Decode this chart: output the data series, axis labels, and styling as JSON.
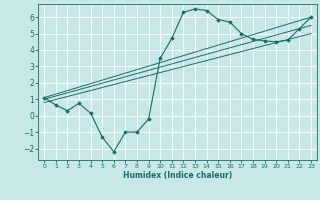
{
  "xlabel": "Humidex (Indice chaleur)",
  "bg_color": "#c8e8e8",
  "grid_color": "#ffffff",
  "line_color": "#1a6b6b",
  "xlim": [
    -0.5,
    23.5
  ],
  "ylim": [
    -2.7,
    6.8
  ],
  "xticks": [
    0,
    1,
    2,
    3,
    4,
    5,
    6,
    7,
    8,
    9,
    10,
    11,
    12,
    13,
    14,
    15,
    16,
    17,
    18,
    19,
    20,
    21,
    22,
    23
  ],
  "yticks": [
    -2,
    -1,
    0,
    1,
    2,
    3,
    4,
    5,
    6
  ],
  "main_x": [
    0,
    1,
    2,
    3,
    4,
    5,
    6,
    7,
    8,
    9,
    10,
    11,
    12,
    13,
    14,
    15,
    16,
    17,
    18,
    19,
    20,
    21,
    22,
    23
  ],
  "main_y": [
    1.1,
    0.65,
    0.3,
    0.75,
    0.15,
    -1.3,
    -2.2,
    -1.0,
    -1.0,
    -0.2,
    3.5,
    4.7,
    6.3,
    6.5,
    6.4,
    5.85,
    5.7,
    5.0,
    4.65,
    4.55,
    4.5,
    4.6,
    5.3,
    6.0
  ],
  "line1_x": [
    0,
    23
  ],
  "line1_y": [
    1.0,
    5.5
  ],
  "line2_x": [
    0,
    23
  ],
  "line2_y": [
    0.8,
    5.0
  ],
  "line3_x": [
    0,
    23
  ],
  "line3_y": [
    1.1,
    6.0
  ]
}
